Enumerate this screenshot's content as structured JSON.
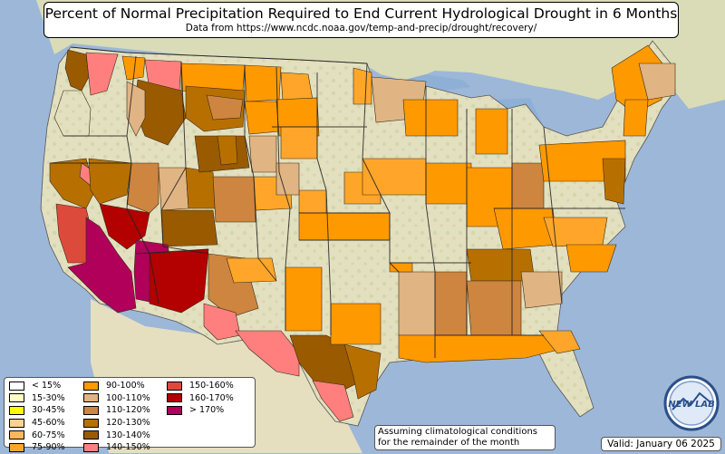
{
  "title": "Percent of Normal Precipitation Required to End Current Hydrological Drought in 6 Months",
  "subtitle": "Data from https://www.ncdc.noaa.gov/temp-and-precip/drought/recovery/",
  "legend": [
    {
      "label": "< 15%",
      "color": "#ffffff"
    },
    {
      "label": "15-30%",
      "color": "#ffffc0"
    },
    {
      "label": "30-45%",
      "color": "#ffff00"
    },
    {
      "label": "45-60%",
      "color": "#ffd38c"
    },
    {
      "label": "60-75%",
      "color": "#ffb65e"
    },
    {
      "label": "75-90%",
      "color": "#ffa62a"
    },
    {
      "label": "90-100%",
      "color": "#ff9900"
    },
    {
      "label": "100-110%",
      "color": "#e0b483"
    },
    {
      "label": "110-120%",
      "color": "#cd853f"
    },
    {
      "label": "120-130%",
      "color": "#b77000"
    },
    {
      "label": "130-140%",
      "color": "#9a5a00"
    },
    {
      "label": "140-150%",
      "color": "#ff7f7f"
    },
    {
      "label": "150-160%",
      "color": "#dc4a3c"
    },
    {
      "label": "160-170%",
      "color": "#b30000"
    },
    {
      "label": "> 170%",
      "color": "#b0005a"
    }
  ],
  "note": [
    "Assuming climatological conditions",
    "for the remainder of the month"
  ],
  "valid": "Valid: January 06 2025",
  "logo_text": "NEW LAB",
  "colors": {
    "ocean": "#9db7d8",
    "land": "#e6e3c4",
    "land_dark": "#cfd3a8",
    "border": "#333333"
  }
}
